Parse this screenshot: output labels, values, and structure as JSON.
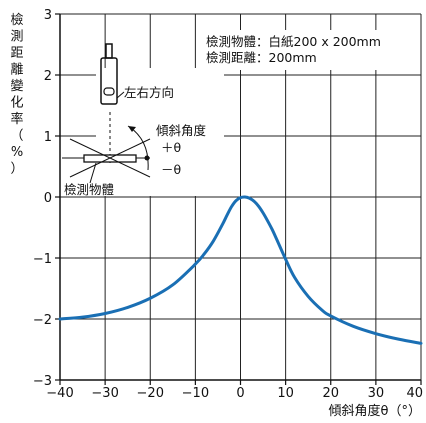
{
  "chart_data": {
    "type": "line",
    "ylabel_chars": [
      "檢",
      "測",
      "距",
      "離",
      "變",
      "化",
      "率",
      "（",
      "%",
      "）"
    ],
    "xlabel": "傾斜角度θ（°）",
    "xlim": [
      -40,
      40
    ],
    "ylim": [
      -3,
      3
    ],
    "xticks": [
      -40,
      -30,
      -20,
      -10,
      0,
      10,
      20,
      30,
      40
    ],
    "yticks": [
      3,
      2,
      1,
      0,
      -1,
      -2,
      -3
    ],
    "xtick_labels": [
      "−40",
      "−30",
      "−20",
      "−10",
      "0",
      "10",
      "20",
      "30",
      "40"
    ],
    "ytick_labels": [
      "3",
      "2",
      "1",
      "0",
      "−1",
      "−2",
      "−3"
    ],
    "grid": true,
    "annotations": {
      "object_line": "檢測物體：白紙200 x 200mm",
      "distance_line": "檢測距離：200mm",
      "direction": "左右方向",
      "tilt_angle": "傾斜角度",
      "plus_theta": "＋θ",
      "minus_theta": "－θ",
      "object": "檢測物體"
    },
    "series": [
      {
        "color": "#1a6fb4",
        "x": [
          -40,
          -35,
          -30,
          -25,
          -20,
          -15,
          -10,
          -8,
          -6,
          -4,
          -3,
          -2,
          -1,
          0,
          1,
          2,
          3,
          4,
          5,
          6,
          7,
          8,
          10,
          12,
          15,
          18,
          20,
          25,
          30,
          35,
          40
        ],
        "y": [
          -2.0,
          -1.97,
          -1.91,
          -1.81,
          -1.66,
          -1.44,
          -1.1,
          -0.93,
          -0.72,
          -0.45,
          -0.3,
          -0.16,
          -0.06,
          -0.01,
          0.0,
          -0.02,
          -0.07,
          -0.15,
          -0.26,
          -0.39,
          -0.53,
          -0.69,
          -1.02,
          -1.32,
          -1.63,
          -1.85,
          -1.95,
          -2.12,
          -2.24,
          -2.33,
          -2.4
        ]
      }
    ]
  }
}
